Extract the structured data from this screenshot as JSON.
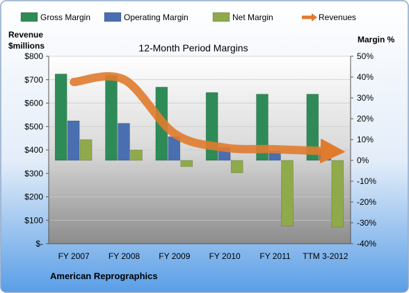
{
  "chart_data": {
    "type": "bar",
    "title": "12-Month Period Margins",
    "company": "American Reprographics",
    "left_axis": {
      "title_line1": "Revenue",
      "title_line2": "$millions",
      "range": [
        0,
        800
      ],
      "ticks": [
        "$-",
        "$100",
        "$200",
        "$300",
        "$400",
        "$500",
        "$600",
        "$700",
        "$800"
      ]
    },
    "right_axis": {
      "title": "Margin %",
      "range": [
        -40,
        50
      ],
      "ticks": [
        "-40%",
        "-30%",
        "-20%",
        "-10%",
        "0%",
        "10%",
        "20%",
        "30%",
        "40%",
        "50%"
      ]
    },
    "categories": [
      "FY 2007",
      "FY 2008",
      "FY 2009",
      "FY 2010",
      "FY 2011",
      "TTM 3-2012"
    ],
    "series": [
      {
        "name": "Gross Margin",
        "axis": "right",
        "color": "#2e8b57",
        "values": [
          41.5,
          40.8,
          35.2,
          32.6,
          31.8,
          31.8
        ]
      },
      {
        "name": "Operating Margin",
        "axis": "right",
        "color": "#4a6fb0",
        "values": [
          19,
          17.8,
          11.4,
          6.3,
          4.5,
          5.2
        ]
      },
      {
        "name": "Net Margin",
        "axis": "right",
        "color": "#8faa4a",
        "values": [
          10,
          5,
          -3,
          -6,
          -31.5,
          -32
        ]
      },
      {
        "name": "Revenues",
        "axis": "left",
        "color": "#e07b2e",
        "values": [
          690,
          700,
          470,
          410,
          403,
          395
        ]
      }
    ],
    "legend_position": "top",
    "grid": true
  }
}
